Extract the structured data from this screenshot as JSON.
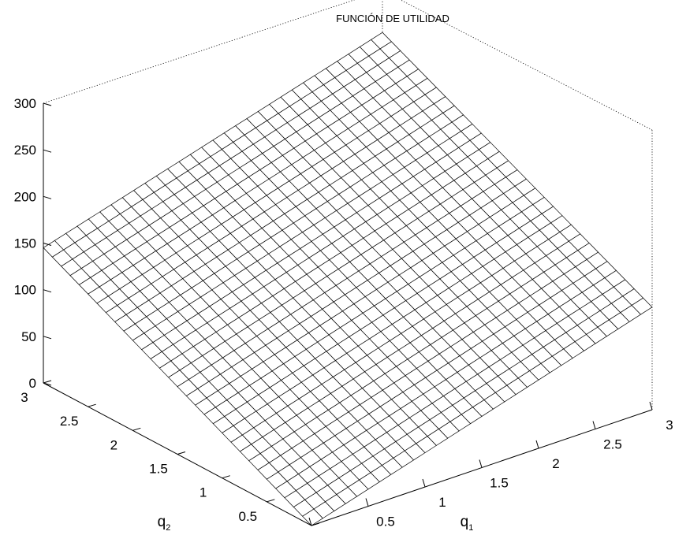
{
  "chart_data": {
    "type": "surface",
    "title": "FUNCIÓN DE UTILIDAD",
    "x_axis": {
      "label": "q",
      "label_subscript": "1",
      "range": [
        0,
        3
      ],
      "ticks": [
        "0",
        "0.5",
        "1",
        "1.5",
        "2",
        "2.5",
        "3"
      ]
    },
    "y_axis": {
      "label": "q",
      "label_subscript": "2",
      "range": [
        0,
        3
      ],
      "ticks": [
        "0",
        "0.5",
        "1",
        "1.5",
        "2",
        "2.5",
        "3"
      ]
    },
    "z_axis": {
      "range": [
        0,
        300
      ],
      "ticks": [
        "0",
        "50",
        "100",
        "150",
        "200",
        "250",
        "300"
      ]
    },
    "grid": {
      "x_steps": 30,
      "y_steps": 30,
      "corner_values": {
        "q1_0_q2_0": 0,
        "q1_3_q2_0": 110,
        "q1_0_q2_3": 145,
        "q1_3_q2_3": 255
      }
    },
    "line_color": "#000000",
    "face_color": "#ffffff"
  }
}
